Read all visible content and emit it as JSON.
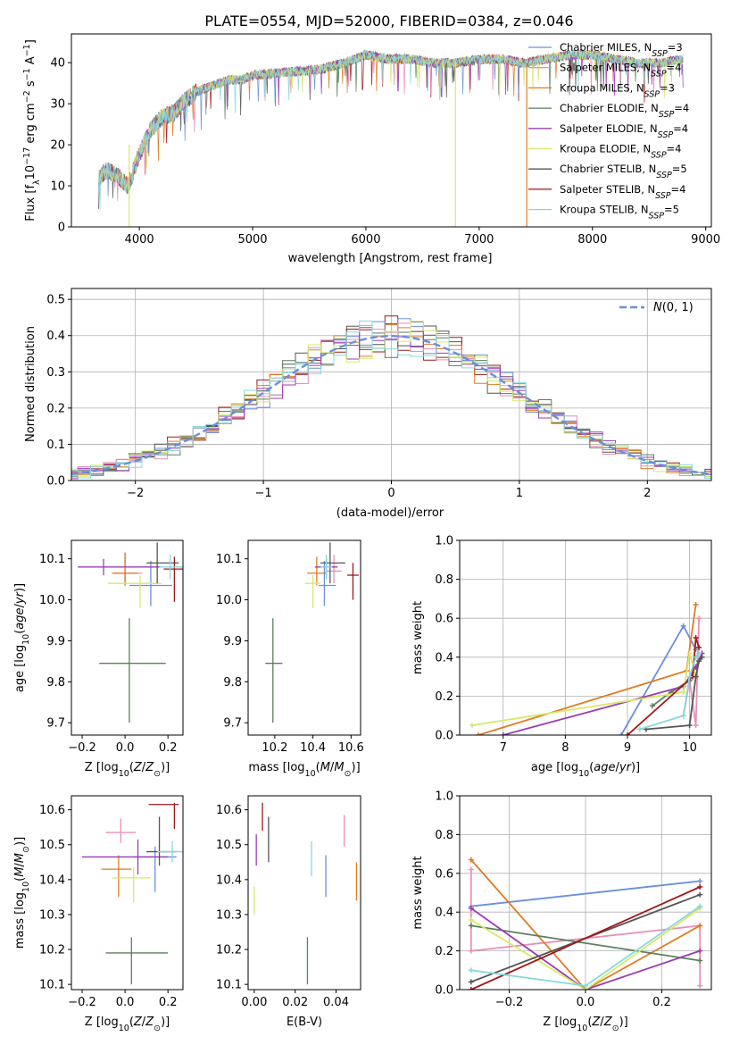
{
  "figure": {
    "title": "PLATE=0554, MJD=52000, FIBERID=0384, z=0.046"
  },
  "series_names": [
    "Chabrier MILES, N_SSP=3",
    "Salpeter MILES, N_SSP=4",
    "Kroupa MILES, N_SSP=3",
    "Chabrier ELODIE, N_SSP=4",
    "Salpeter ELODIE, N_SSP=4",
    "Kroupa ELODIE, N_SSP=4",
    "Chabrier STELIB, N_SSP=5",
    "Salpeter STELIB, N_SSP=4",
    "Kroupa STELIB, N_SSP=5"
  ],
  "colors": [
    "#6a8fdc",
    "#e98fb8",
    "#e07b22",
    "#5b7f5b",
    "#9a3db6",
    "#d8e86a",
    "#555555",
    "#a01818",
    "#86d8dc"
  ],
  "chart_data": [
    {
      "id": "spectrum",
      "type": "line",
      "xlabel": "wavelength [Angstrom, rest frame]",
      "ylabel": "Flux [f_λ10^-17 erg cm^-2 s^-1 A^-1]",
      "xlim": [
        3400,
        9050
      ],
      "ylim": [
        0,
        47
      ],
      "xticks": [
        4000,
        5000,
        6000,
        7000,
        8000,
        9000
      ],
      "yticks": [
        0,
        10,
        20,
        30,
        40
      ],
      "legend": [
        "Chabrier MILES, N_SSP=3",
        "Salpeter MILES, N_SSP=4",
        "Kroupa MILES, N_SSP=3",
        "Chabrier ELODIE, N_SSP=4",
        "Salpeter ELODIE, N_SSP=4",
        "Kroupa ELODIE, N_SSP=4",
        "Chabrier STELIB, N_SSP=5",
        "Salpeter STELIB, N_SSP=4",
        "Kroupa STELIB, N_SSP=5"
      ],
      "legend_loc": "top-right",
      "continuum": {
        "wavelength": [
          3640,
          3700,
          3800,
          3900,
          4000,
          4100,
          4200,
          4300,
          4400,
          4500,
          4600,
          4700,
          4800,
          4900,
          5000,
          5200,
          5400,
          5600,
          5800,
          6000,
          6200,
          6400,
          6600,
          6800,
          7000,
          7200,
          7400,
          7600,
          7800,
          8000,
          8200,
          8400,
          8600,
          8800
        ],
        "flux": [
          12,
          14,
          13,
          10,
          18,
          24,
          27,
          28,
          31,
          33,
          34,
          35,
          36,
          36,
          37,
          37.5,
          38,
          38.5,
          40,
          42,
          41,
          41,
          40,
          40,
          41,
          41,
          40,
          41,
          42,
          42,
          41,
          40,
          40,
          41
        ]
      },
      "dropouts": [
        {
          "series": "Kroupa ELODIE, N_SSP=4",
          "wavelength": 3910,
          "from": 20,
          "to": 0
        },
        {
          "series": "Kroupa ELODIE, N_SSP=4",
          "wavelength": 6790,
          "from": 40,
          "to": 0
        },
        {
          "series": "Kroupa MILES, N_SSP=3",
          "wavelength": 7420,
          "from": 40,
          "to": 0
        }
      ]
    },
    {
      "id": "residuals",
      "type": "histogram",
      "xlabel": "(data-model)/error",
      "ylabel": "Normed distribution",
      "xlim": [
        -2.5,
        2.5
      ],
      "ylim": [
        0,
        0.53
      ],
      "xticks": [
        -2,
        -1,
        0,
        1,
        2
      ],
      "yticks": [
        0.0,
        0.1,
        0.2,
        0.3,
        0.4,
        0.5
      ],
      "grid": true,
      "bin_width": 0.1,
      "reference": {
        "label": "N(0,1)",
        "style": "dashed",
        "color": "#6a8fdc"
      },
      "legend_loc": "top-right"
    },
    {
      "id": "age_vs_Z",
      "type": "errorbar",
      "xlabel": "Z [log10(Z/Z⊙)]",
      "ylabel": "age  [log10(age/yr)]",
      "xlim": [
        -0.25,
        0.27
      ],
      "ylim": [
        9.67,
        10.145
      ],
      "xticks": [
        -0.2,
        0.0,
        0.2
      ],
      "yticks": [
        9.7,
        9.8,
        9.9,
        10.0,
        10.1
      ],
      "points": [
        {
          "series": "Chabrier MILES, N_SSP=3",
          "x": 0.12,
          "y": 10.035,
          "xerr": [
            0.1,
            0.1
          ],
          "yerr": [
            0.05,
            0.06
          ]
        },
        {
          "series": "Salpeter MILES, N_SSP=4",
          "x": 0.0,
          "y": 10.065,
          "xerr": [
            0.06,
            0.08
          ],
          "yerr": [
            0.03,
            0.05
          ]
        },
        {
          "series": "Kroupa MILES, N_SSP=3",
          "x": 0.0,
          "y": 10.065,
          "xerr": [
            0.06,
            0.06
          ],
          "yerr": [
            0.03,
            0.05
          ]
        },
        {
          "series": "Chabrier ELODIE, N_SSP=4",
          "x": 0.02,
          "y": 9.845,
          "xerr": [
            0.14,
            0.17
          ],
          "yerr": [
            0.145,
            0.11
          ]
        },
        {
          "series": "Salpeter ELODIE, N_SSP=4",
          "x": -0.1,
          "y": 10.08,
          "xerr": [
            0.12,
            0.27
          ],
          "yerr": [
            0.02,
            0.02
          ]
        },
        {
          "series": "Kroupa ELODIE, N_SSP=4",
          "x": 0.07,
          "y": 10.04,
          "xerr": [
            0.15,
            0.1
          ],
          "yerr": [
            0.06,
            0.02
          ]
        },
        {
          "series": "Chabrier STELIB, N_SSP=5",
          "x": 0.15,
          "y": 10.09,
          "xerr": [
            0.05,
            0.1
          ],
          "yerr": [
            0.05,
            0.05
          ]
        },
        {
          "series": "Salpeter STELIB, N_SSP=4",
          "x": 0.23,
          "y": 10.075,
          "xerr": [
            0.05,
            0.04
          ],
          "yerr": [
            0.08,
            0.03
          ]
        },
        {
          "series": "Kroupa STELIB, N_SSP=5",
          "x": 0.21,
          "y": 10.08,
          "xerr": [
            0.05,
            0.06
          ],
          "yerr": [
            0.03,
            0.03
          ]
        }
      ]
    },
    {
      "id": "age_vs_mass",
      "type": "errorbar",
      "xlabel": "mass [log10(M/M⊙)]",
      "ylabel": "",
      "xlim": [
        10.06,
        10.65
      ],
      "ylim": [
        9.67,
        10.145
      ],
      "xticks": [
        10.2,
        10.4,
        10.6
      ],
      "yticks": [
        9.7,
        9.8,
        9.9,
        10.0,
        10.1
      ],
      "points": [
        {
          "series": "Chabrier MILES, N_SSP=3",
          "x": 10.46,
          "y": 10.035,
          "xerr": [
            0.03,
            0.06
          ],
          "yerr": [
            0.05,
            0.06
          ]
        },
        {
          "series": "Salpeter MILES, N_SSP=4",
          "x": 10.51,
          "y": 10.07,
          "xerr": [
            0.04,
            0.04
          ],
          "yerr": [
            0.03,
            0.04
          ]
        },
        {
          "series": "Kroupa MILES, N_SSP=3",
          "x": 10.42,
          "y": 10.065,
          "xerr": [
            0.05,
            0.05
          ],
          "yerr": [
            0.03,
            0.04
          ]
        },
        {
          "series": "Chabrier ELODIE, N_SSP=4",
          "x": 10.19,
          "y": 9.845,
          "xerr": [
            0.04,
            0.05
          ],
          "yerr": [
            0.145,
            0.11
          ]
        },
        {
          "series": "Salpeter ELODIE, N_SSP=4",
          "x": 10.47,
          "y": 10.08,
          "xerr": [
            0.06,
            0.06
          ],
          "yerr": [
            0.02,
            0.02
          ]
        },
        {
          "series": "Kroupa ELODIE, N_SSP=4",
          "x": 10.4,
          "y": 10.04,
          "xerr": [
            0.04,
            0.04
          ],
          "yerr": [
            0.06,
            0.02
          ]
        },
        {
          "series": "Chabrier STELIB, N_SSP=5",
          "x": 10.49,
          "y": 10.09,
          "xerr": [
            0.05,
            0.08
          ],
          "yerr": [
            0.05,
            0.05
          ]
        },
        {
          "series": "Salpeter STELIB, N_SSP=4",
          "x": 10.61,
          "y": 10.06,
          "xerr": [
            0.03,
            0.03
          ],
          "yerr": [
            0.06,
            0.03
          ]
        },
        {
          "series": "Kroupa STELIB, N_SSP=5",
          "x": 10.47,
          "y": 10.08,
          "xerr": [
            0.03,
            0.03
          ],
          "yerr": [
            0.03,
            0.03
          ]
        }
      ]
    },
    {
      "id": "weight_vs_age",
      "type": "line",
      "xlabel": "age  [log10(age/yr)]",
      "ylabel": "mass weight",
      "xlim": [
        6.3,
        10.35
      ],
      "ylim": [
        0,
        1
      ],
      "xticks": [
        7,
        8,
        9,
        10
      ],
      "yticks": [
        0.0,
        0.2,
        0.4,
        0.6,
        0.8,
        1.0
      ],
      "grid": true,
      "series": [
        {
          "name": "Chabrier MILES, N_SSP=3",
          "x": [
            8.9,
            9.9,
            10.1
          ],
          "y": [
            0.0,
            0.56,
            0.44
          ]
        },
        {
          "name": "Salpeter MILES, N_SSP=4",
          "x": [
            9.9,
            10.0,
            10.1,
            10.15
          ],
          "y": [
            0.1,
            0.28,
            0.05,
            0.6
          ]
        },
        {
          "name": "Kroupa MILES, N_SSP=3",
          "x": [
            6.6,
            9.95,
            10.1
          ],
          "y": [
            0.0,
            0.33,
            0.67
          ]
        },
        {
          "name": "Chabrier ELODIE, N_SSP=4",
          "x": [
            9.4,
            9.7,
            10.0,
            10.1
          ],
          "y": [
            0.15,
            0.22,
            0.28,
            0.35
          ]
        },
        {
          "name": "Salpeter ELODIE, N_SSP=4",
          "x": [
            7.0,
            9.9,
            10.1,
            10.2
          ],
          "y": [
            0.0,
            0.25,
            0.35,
            0.42
          ]
        },
        {
          "name": "Kroupa ELODIE, N_SSP=4",
          "x": [
            6.5,
            9.9,
            10.0,
            10.1
          ],
          "y": [
            0.05,
            0.22,
            0.42,
            0.3
          ]
        },
        {
          "name": "Chabrier STELIB, N_SSP=5",
          "x": [
            9.3,
            10.0,
            10.1,
            10.15,
            10.2
          ],
          "y": [
            0.03,
            0.05,
            0.3,
            0.38,
            0.4
          ]
        },
        {
          "name": "Salpeter STELIB, N_SSP=4",
          "x": [
            9.0,
            10.05,
            10.1,
            10.15
          ],
          "y": [
            0.0,
            0.3,
            0.5,
            0.45
          ]
        },
        {
          "name": "Kroupa STELIB, N_SSP=5",
          "x": [
            9.2,
            9.9,
            10.0,
            10.1,
            10.15
          ],
          "y": [
            0.03,
            0.1,
            0.3,
            0.4,
            0.42
          ]
        }
      ]
    },
    {
      "id": "mass_vs_Z",
      "type": "errorbar",
      "xlabel": "Z [log10(Z/Z⊙)]",
      "ylabel": "mass [log10(M/M⊙)]",
      "xlim": [
        -0.25,
        0.27
      ],
      "ylim": [
        10.085,
        10.64
      ],
      "xticks": [
        -0.2,
        0.0,
        0.2
      ],
      "yticks": [
        10.1,
        10.2,
        10.3,
        10.4,
        10.5,
        10.6
      ],
      "points": [
        {
          "series": "Chabrier MILES, N_SSP=3",
          "x": 0.14,
          "y": 10.465,
          "xerr": [
            0.1,
            0.1
          ],
          "yerr": [
            0.1,
            0.03
          ]
        },
        {
          "series": "Salpeter MILES, N_SSP=4",
          "x": -0.02,
          "y": 10.535,
          "xerr": [
            0.07,
            0.07
          ],
          "yerr": [
            0.03,
            0.04
          ]
        },
        {
          "series": "Kroupa MILES, N_SSP=3",
          "x": -0.03,
          "y": 10.43,
          "xerr": [
            0.08,
            0.06
          ],
          "yerr": [
            0.08,
            0.04
          ]
        },
        {
          "series": "Chabrier ELODIE, N_SSP=4",
          "x": 0.03,
          "y": 10.19,
          "xerr": [
            0.12,
            0.17
          ],
          "yerr": [
            0.09,
            0.045
          ]
        },
        {
          "series": "Salpeter ELODIE, N_SSP=4",
          "x": 0.06,
          "y": 10.465,
          "xerr": [
            0.26,
            0.14
          ],
          "yerr": [
            0.05,
            0.05
          ]
        },
        {
          "series": "Kroupa ELODIE, N_SSP=4",
          "x": 0.04,
          "y": 10.405,
          "xerr": [
            0.1,
            0.08
          ],
          "yerr": [
            0.07,
            0.03
          ]
        },
        {
          "series": "Chabrier STELIB, N_SSP=5",
          "x": 0.16,
          "y": 10.48,
          "xerr": [
            0.06,
            0.08
          ],
          "yerr": [
            0.04,
            0.1
          ]
        },
        {
          "series": "Salpeter STELIB, N_SSP=4",
          "x": 0.23,
          "y": 10.615,
          "xerr": [
            0.12,
            0.02
          ],
          "yerr": [
            0.07,
            0.005
          ]
        },
        {
          "series": "Kroupa STELIB, N_SSP=5",
          "x": 0.22,
          "y": 10.48,
          "xerr": [
            0.07,
            0.05
          ],
          "yerr": [
            0.03,
            0.03
          ]
        }
      ]
    },
    {
      "id": "mass_vs_EBV",
      "type": "errorbar",
      "xlabel": "E(B-V)",
      "ylabel": "",
      "xlim": [
        -0.003,
        0.052
      ],
      "ylim": [
        10.085,
        10.64
      ],
      "xticks": [
        0.0,
        0.02,
        0.04
      ],
      "yticks": [
        10.1,
        10.2,
        10.3,
        10.4,
        10.5,
        10.6
      ],
      "points": [
        {
          "series": "Chabrier MILES, N_SSP=3",
          "x": 0.035,
          "y": 10.4,
          "yerr": [
            0.05,
            0.07
          ]
        },
        {
          "series": "Salpeter MILES, N_SSP=4",
          "x": 0.044,
          "y": 10.535,
          "yerr": [
            0.04,
            0.05
          ]
        },
        {
          "series": "Kroupa MILES, N_SSP=3",
          "x": 0.05,
          "y": 10.4,
          "yerr": [
            0.06,
            0.05
          ]
        },
        {
          "series": "Chabrier ELODIE, N_SSP=4",
          "x": 0.026,
          "y": 10.19,
          "yerr": [
            0.09,
            0.045
          ]
        },
        {
          "series": "Salpeter ELODIE, N_SSP=4",
          "x": 0.001,
          "y": 10.49,
          "yerr": [
            0.05,
            0.04
          ]
        },
        {
          "series": "Kroupa ELODIE, N_SSP=4",
          "x": 0.0,
          "y": 10.34,
          "yerr": [
            0.04,
            0.04
          ]
        },
        {
          "series": "Chabrier STELIB, N_SSP=5",
          "x": 0.007,
          "y": 10.52,
          "yerr": [
            0.07,
            0.06
          ]
        },
        {
          "series": "Salpeter STELIB, N_SSP=4",
          "x": 0.004,
          "y": 10.58,
          "yerr": [
            0.04,
            0.04
          ]
        },
        {
          "series": "Kroupa STELIB, N_SSP=5",
          "x": 0.028,
          "y": 10.46,
          "yerr": [
            0.05,
            0.05
          ]
        }
      ]
    },
    {
      "id": "weight_vs_Z",
      "type": "line",
      "xlabel": "Z [log10(Z/Z⊙)]",
      "ylabel": "mass weight",
      "xlim": [
        -0.33,
        0.33
      ],
      "ylim": [
        0,
        1
      ],
      "xticks": [
        -0.2,
        0.0,
        0.2
      ],
      "yticks": [
        0.0,
        0.2,
        0.4,
        0.6,
        0.8,
        1.0
      ],
      "grid": true,
      "series": [
        {
          "name": "Chabrier MILES, N_SSP=3",
          "x": [
            -0.3,
            0.3
          ],
          "y": [
            0.43,
            0.56
          ]
        },
        {
          "name": "Salpeter MILES, N_SSP=4",
          "x": [
            -0.3,
            -0.3,
            0.3,
            0.3
          ],
          "y": [
            0.62,
            0.2,
            0.33,
            0.02
          ]
        },
        {
          "name": "Kroupa MILES, N_SSP=3",
          "x": [
            -0.3,
            0.0,
            0.3
          ],
          "y": [
            0.67,
            0.0,
            0.33
          ]
        },
        {
          "name": "Chabrier ELODIE, N_SSP=4",
          "x": [
            -0.3,
            0.3
          ],
          "y": [
            0.33,
            0.15
          ]
        },
        {
          "name": "Salpeter ELODIE, N_SSP=4",
          "x": [
            -0.3,
            0.0,
            0.3
          ],
          "y": [
            0.42,
            0.0,
            0.2
          ]
        },
        {
          "name": "Kroupa ELODIE, N_SSP=4",
          "x": [
            -0.3,
            0.0,
            0.3
          ],
          "y": [
            0.36,
            0.0,
            0.42
          ]
        },
        {
          "name": "Chabrier STELIB, N_SSP=5",
          "x": [
            -0.3,
            0.3
          ],
          "y": [
            0.04,
            0.49
          ]
        },
        {
          "name": "Salpeter STELIB, N_SSP=4",
          "x": [
            -0.3,
            0.3
          ],
          "y": [
            0.0,
            0.53
          ]
        },
        {
          "name": "Kroupa STELIB, N_SSP=5",
          "x": [
            -0.3,
            0.0,
            0.3
          ],
          "y": [
            0.1,
            0.02,
            0.43
          ]
        }
      ]
    }
  ]
}
